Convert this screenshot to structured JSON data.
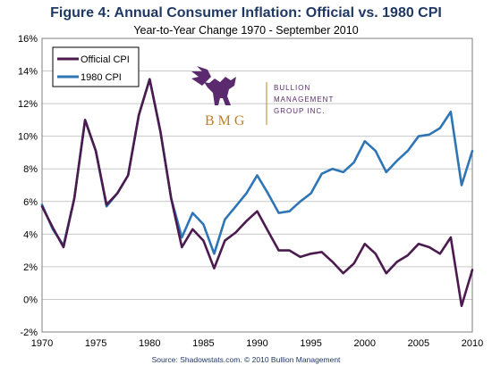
{
  "chart_data": {
    "type": "line",
    "title": "Figure 4: Annual Consumer Inflation: Official vs. 1980 CPI",
    "subtitle": "Year-to-Year Change 1970 - September 2010",
    "source": "Source: Shadowstats.com. © 2010 Bullion Management",
    "xlim": [
      1970,
      2010
    ],
    "ylim": [
      -2,
      16
    ],
    "x_ticks": [
      {
        "value": 1970,
        "label": "1970"
      },
      {
        "value": 1975,
        "label": "1975"
      },
      {
        "value": 1980,
        "label": "1980"
      },
      {
        "value": 1985,
        "label": "1985"
      },
      {
        "value": 1990,
        "label": "1990"
      },
      {
        "value": 1995,
        "label": "1995"
      },
      {
        "value": 2000,
        "label": "2000"
      },
      {
        "value": 2005,
        "label": "2005"
      },
      {
        "value": 2010,
        "label": "2010"
      }
    ],
    "y_ticks": [
      {
        "value": 16,
        "label": "16%"
      },
      {
        "value": 14,
        "label": "14%"
      },
      {
        "value": 12,
        "label": "12%"
      },
      {
        "value": 10,
        "label": "10%"
      },
      {
        "value": 8,
        "label": "8%"
      },
      {
        "value": 6,
        "label": "6%"
      },
      {
        "value": 4,
        "label": "4%"
      },
      {
        "value": 2,
        "label": "2%"
      },
      {
        "value": 0,
        "label": "0%"
      },
      {
        "value": -2,
        "label": "-2%"
      }
    ],
    "grid": true,
    "legend_position": "top-left",
    "series": [
      {
        "name": "Official CPI",
        "color": "#4b1a4e",
        "x": [
          1970,
          1971,
          1972,
          1973,
          1974,
          1975,
          1976,
          1977,
          1978,
          1979,
          1980,
          1981,
          1982,
          1983,
          1984,
          1985,
          1986,
          1987,
          1988,
          1989,
          1990,
          1991,
          1992,
          1993,
          1994,
          1995,
          1996,
          1997,
          1998,
          1999,
          2000,
          2001,
          2002,
          2003,
          2004,
          2005,
          2006,
          2007,
          2008,
          2009,
          2010
        ],
        "y": [
          5.7,
          4.4,
          3.2,
          6.2,
          11.0,
          9.1,
          5.8,
          6.5,
          7.6,
          11.3,
          13.5,
          10.3,
          6.2,
          3.2,
          4.3,
          3.6,
          1.9,
          3.6,
          4.1,
          4.8,
          5.4,
          4.2,
          3.0,
          3.0,
          2.6,
          2.8,
          2.9,
          2.3,
          1.6,
          2.2,
          3.4,
          2.8,
          1.6,
          2.3,
          2.7,
          3.4,
          3.2,
          2.8,
          3.8,
          -0.4,
          1.8
        ]
      },
      {
        "name": "1980 CPI",
        "color": "#2e75b6",
        "x": [
          1970,
          1971,
          1972,
          1973,
          1974,
          1975,
          1976,
          1977,
          1978,
          1979,
          1980,
          1981,
          1982,
          1983,
          1984,
          1985,
          1986,
          1987,
          1988,
          1989,
          1990,
          1991,
          1992,
          1993,
          1994,
          1995,
          1996,
          1997,
          1998,
          1999,
          2000,
          2001,
          2002,
          2003,
          2004,
          2005,
          2006,
          2007,
          2008,
          2009,
          2010
        ],
        "y": [
          5.8,
          4.3,
          3.3,
          6.2,
          11.0,
          9.1,
          5.7,
          6.5,
          7.6,
          11.3,
          13.5,
          10.3,
          6.2,
          3.8,
          5.3,
          4.6,
          2.8,
          4.9,
          5.7,
          6.5,
          7.6,
          6.5,
          5.3,
          5.4,
          6.0,
          6.5,
          7.7,
          8.0,
          7.8,
          8.4,
          9.7,
          9.1,
          7.8,
          8.5,
          9.1,
          10.0,
          10.1,
          10.5,
          11.5,
          7.0,
          9.1
        ]
      }
    ]
  },
  "logo": {
    "abbr": "BMG",
    "name_lines": [
      "BULLION",
      "MANAGEMENT",
      "GROUP INC."
    ]
  }
}
